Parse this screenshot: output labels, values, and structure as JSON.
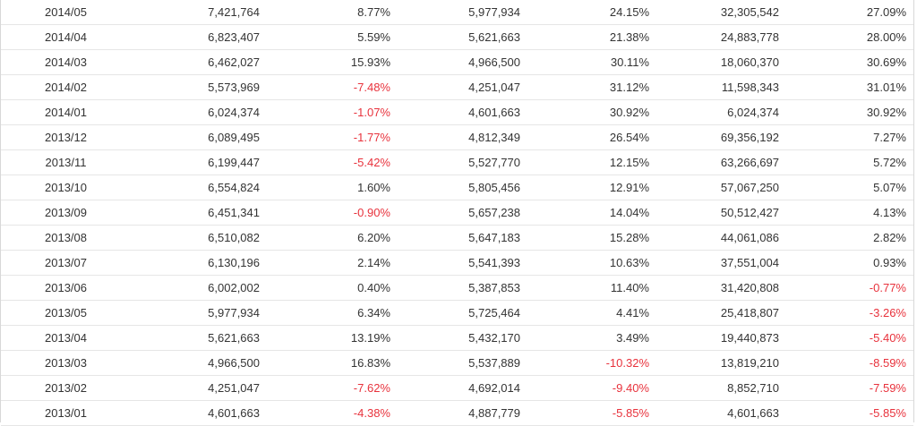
{
  "table": {
    "rows": [
      [
        "2014/05",
        "7,421,764",
        "8.77%",
        "5,977,934",
        "24.15%",
        "32,305,542",
        "27.09%"
      ],
      [
        "2014/04",
        "6,823,407",
        "5.59%",
        "5,621,663",
        "21.38%",
        "24,883,778",
        "28.00%"
      ],
      [
        "2014/03",
        "6,462,027",
        "15.93%",
        "4,966,500",
        "30.11%",
        "18,060,370",
        "30.69%"
      ],
      [
        "2014/02",
        "5,573,969",
        "-7.48%",
        "4,251,047",
        "31.12%",
        "11,598,343",
        "31.01%"
      ],
      [
        "2014/01",
        "6,024,374",
        "-1.07%",
        "4,601,663",
        "30.92%",
        "6,024,374",
        "30.92%"
      ],
      [
        "2013/12",
        "6,089,495",
        "-1.77%",
        "4,812,349",
        "26.54%",
        "69,356,192",
        "7.27%"
      ],
      [
        "2013/11",
        "6,199,447",
        "-5.42%",
        "5,527,770",
        "12.15%",
        "63,266,697",
        "5.72%"
      ],
      [
        "2013/10",
        "6,554,824",
        "1.60%",
        "5,805,456",
        "12.91%",
        "57,067,250",
        "5.07%"
      ],
      [
        "2013/09",
        "6,451,341",
        "-0.90%",
        "5,657,238",
        "14.04%",
        "50,512,427",
        "4.13%"
      ],
      [
        "2013/08",
        "6,510,082",
        "6.20%",
        "5,647,183",
        "15.28%",
        "44,061,086",
        "2.82%"
      ],
      [
        "2013/07",
        "6,130,196",
        "2.14%",
        "5,541,393",
        "10.63%",
        "37,551,004",
        "0.93%"
      ],
      [
        "2013/06",
        "6,002,002",
        "0.40%",
        "5,387,853",
        "11.40%",
        "31,420,808",
        "-0.77%"
      ],
      [
        "2013/05",
        "5,977,934",
        "6.34%",
        "5,725,464",
        "4.41%",
        "25,418,807",
        "-3.26%"
      ],
      [
        "2013/04",
        "5,621,663",
        "13.19%",
        "5,432,170",
        "3.49%",
        "19,440,873",
        "-5.40%"
      ],
      [
        "2013/03",
        "4,966,500",
        "16.83%",
        "5,537,889",
        "-10.32%",
        "13,819,210",
        "-8.59%"
      ],
      [
        "2013/02",
        "4,251,047",
        "-7.62%",
        "4,692,014",
        "-9.40%",
        "8,852,710",
        "-7.59%"
      ],
      [
        "2013/01",
        "4,601,663",
        "-4.38%",
        "4,887,779",
        "-5.85%",
        "4,601,663",
        "-5.85%"
      ]
    ]
  },
  "colors": {
    "negative": "#e8323c",
    "text": "#333333",
    "border": "#e6e6e6"
  }
}
